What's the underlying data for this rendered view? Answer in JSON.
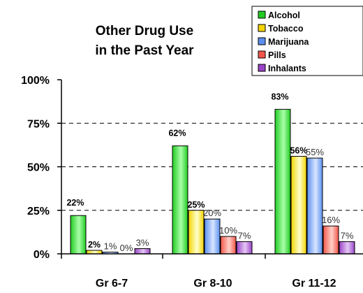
{
  "chart_data": {
    "type": "bar",
    "title_lines": [
      "Other Drug Use",
      "in the Past Year"
    ],
    "categories": [
      "Gr 6-7",
      "Gr 8-10",
      "Gr 11-12"
    ],
    "ylim": [
      0,
      100
    ],
    "yticks": [
      0,
      25,
      50,
      75,
      100
    ],
    "ytick_labels": [
      "0%",
      "25%",
      "50%",
      "75%",
      "100%"
    ],
    "grid": true,
    "legend_position": "top-right",
    "series": [
      {
        "name": "Alcohol",
        "values": [
          22,
          62,
          83
        ],
        "labels": [
          "22%",
          "62%",
          "83%"
        ],
        "color": "#22cc22",
        "highlight": "#aaffaa",
        "label_bold": true
      },
      {
        "name": "Tobacco",
        "values": [
          2,
          25,
          56
        ],
        "labels": [
          "2%",
          "25%",
          "56%"
        ],
        "color": "#f2d400",
        "highlight": "#ffffcc",
        "label_bold": true
      },
      {
        "name": "Marijuana",
        "values": [
          1,
          20,
          55
        ],
        "labels": [
          "1%",
          "20%",
          "55%"
        ],
        "color": "#5a8ff0",
        "highlight": "#d8e6ff",
        "label_bold": false
      },
      {
        "name": "Pills",
        "values": [
          0,
          10,
          16
        ],
        "labels": [
          "0%",
          "10%",
          "16%"
        ],
        "color": "#f2564a",
        "highlight": "#ffd0c8",
        "label_bold": false
      },
      {
        "name": "Inhalants",
        "values": [
          3,
          7,
          7
        ],
        "labels": [
          "3%",
          "7%",
          "7%"
        ],
        "color": "#9a44c8",
        "highlight": "#e6c8f6",
        "label_bold": false
      }
    ]
  }
}
